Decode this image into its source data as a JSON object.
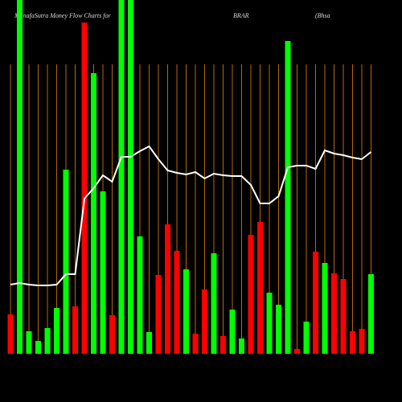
{
  "chart_data": {
    "type": "bar",
    "title": "MunafaSutra  Money Flow  Charts for",
    "ticker": "BRAR",
    "subtitle": "(Bhsa",
    "ylim": [
      0,
      440
    ],
    "grid": true,
    "grid_color": "#b8660b",
    "series": [
      {
        "type": "bar",
        "values": [
          49,
          440,
          28,
          16,
          32,
          57,
          229,
          59,
          412,
          349,
          202,
          48,
          440,
          440,
          146,
          27,
          98,
          161,
          128,
          105,
          25,
          80,
          125,
          22,
          55,
          19,
          148,
          164,
          76,
          61,
          389,
          6,
          40,
          127,
          113,
          100,
          93,
          28,
          31,
          99
        ],
        "colors": [
          "#ff0000",
          "#00ff00",
          "#00ff00",
          "#00ff00",
          "#00ff00",
          "#00ff00",
          "#00ff00",
          "#ff0000",
          "#ff0000",
          "#00ff00",
          "#00ff00",
          "#ff0000",
          "#00ff00",
          "#00ff00",
          "#00ff00",
          "#00ff00",
          "#ff0000",
          "#ff0000",
          "#ff0000",
          "#00ff00",
          "#ff0000",
          "#ff0000",
          "#00ff00",
          "#ff0000",
          "#00ff00",
          "#00ff00",
          "#ff0000",
          "#ff0000",
          "#00ff00",
          "#00ff00",
          "#00ff00",
          "#ff0000",
          "#00ff00",
          "#ff0000",
          "#00ff00",
          "#ff0000",
          "#ff0000",
          "#ff0000",
          "#ff0000",
          "#00ff00"
        ]
      },
      {
        "type": "line",
        "color": "#ffffff",
        "values": [
          86,
          88,
          86,
          85,
          85,
          86,
          99,
          99,
          193,
          206,
          222,
          214,
          245,
          245,
          252,
          258,
          242,
          228,
          225,
          223,
          226,
          218,
          224,
          222,
          221,
          221,
          210,
          187,
          187,
          196,
          232,
          234,
          234,
          230,
          253,
          249,
          247,
          244,
          242,
          251
        ]
      }
    ]
  }
}
